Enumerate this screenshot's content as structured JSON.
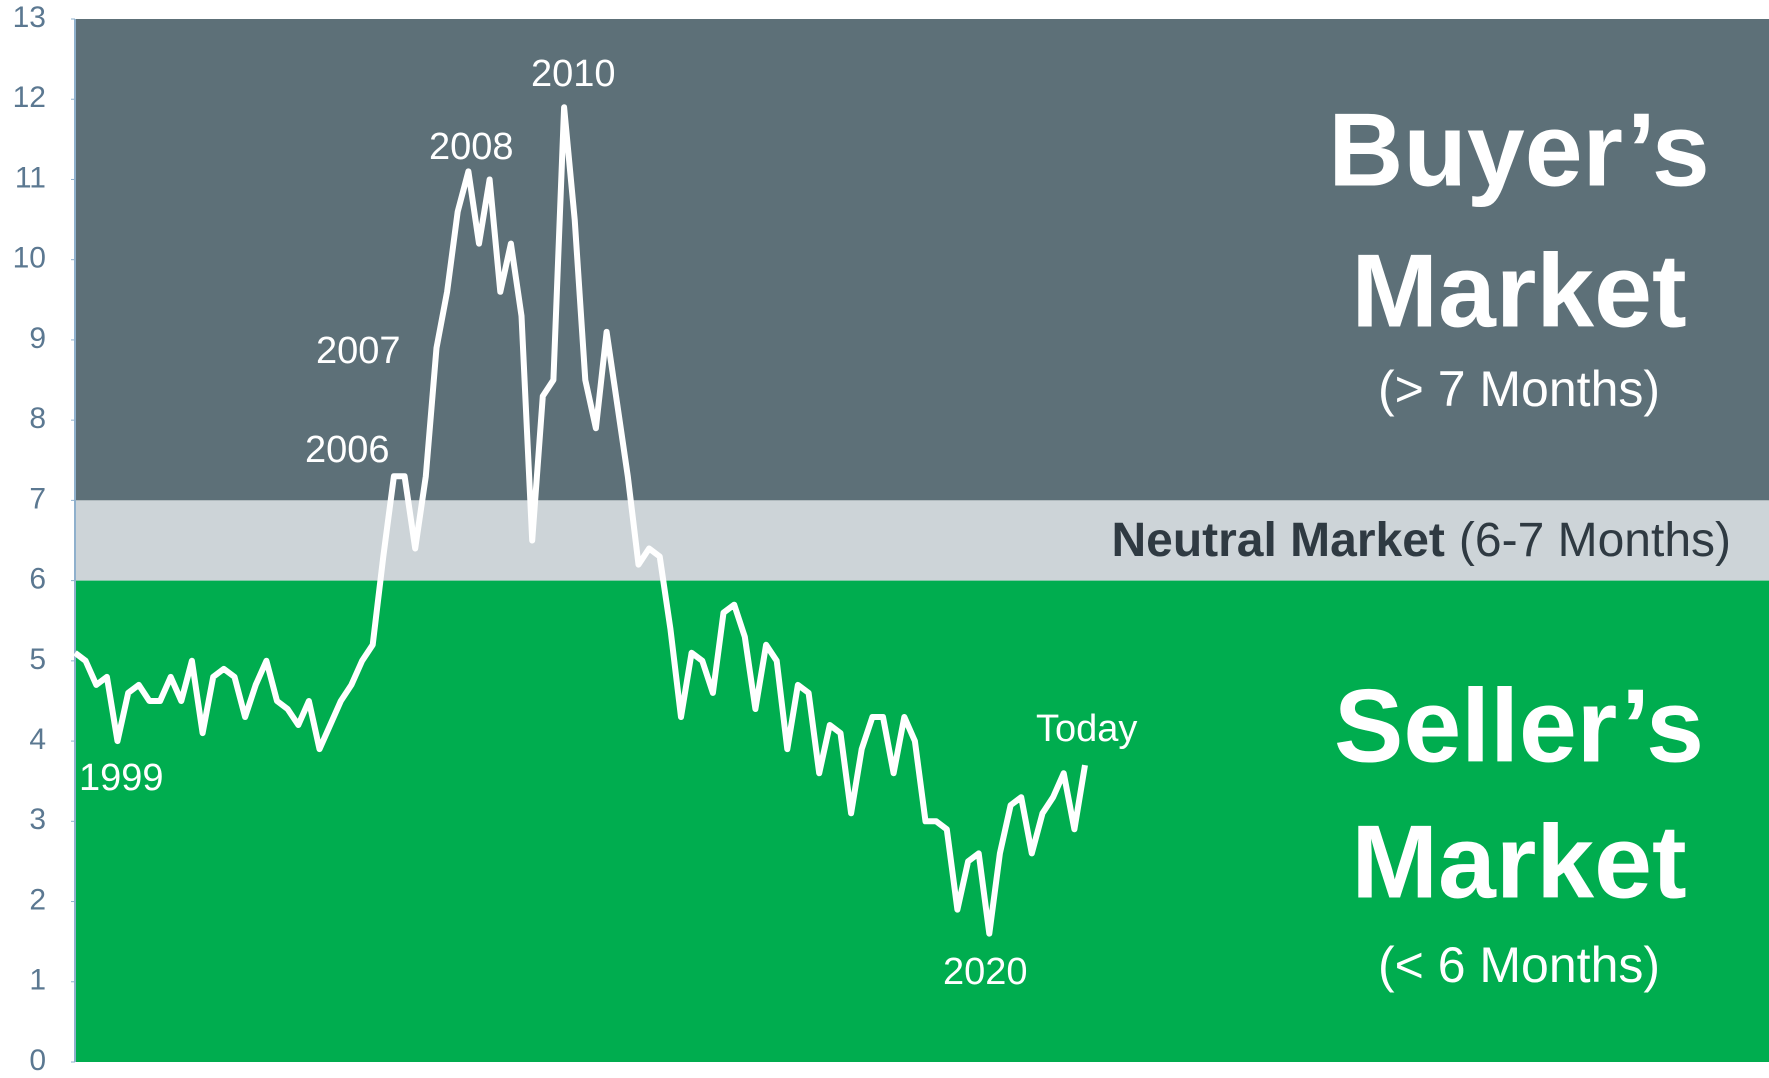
{
  "chart_data": {
    "type": "line",
    "bands": [
      {
        "from": 7,
        "to": 13,
        "color": "#5d7078",
        "title": "Buyer’s",
        "title2": "Market",
        "note": "(> 7 Months)"
      },
      {
        "from": 6,
        "to": 7,
        "color": "#cdd4d8",
        "title": "Neutral Market",
        "note": "(6-7 Months)"
      },
      {
        "from": 0,
        "to": 6,
        "color": "#00ad4f",
        "title": "Seller’s",
        "title2": "Market",
        "note": "(< 6 Months)"
      }
    ],
    "annotations": [
      "1999",
      "2006",
      "2007",
      "2008",
      "2010",
      "2020",
      "Today"
    ],
    "series": [
      {
        "color": "#ffffff",
        "values": [
          5.1,
          5.0,
          4.7,
          4.8,
          4.0,
          4.6,
          4.7,
          4.5,
          4.5,
          4.8,
          4.5,
          5.0,
          4.1,
          4.8,
          4.9,
          4.8,
          4.3,
          4.7,
          5.0,
          4.5,
          4.4,
          4.2,
          4.5,
          3.9,
          4.2,
          4.5,
          4.7,
          5.0,
          5.2,
          6.3,
          7.3,
          7.3,
          6.4,
          7.3,
          8.9,
          9.6,
          10.6,
          11.1,
          10.2,
          11.0,
          9.6,
          10.2,
          9.3,
          6.5,
          8.3,
          8.5,
          11.9,
          10.5,
          8.5,
          7.9,
          9.1,
          8.2,
          7.3,
          6.2,
          6.4,
          6.3,
          5.4,
          4.3,
          5.1,
          5.0,
          4.6,
          5.6,
          5.7,
          5.3,
          4.4,
          5.2,
          5.0,
          3.9,
          4.7,
          4.6,
          3.6,
          4.2,
          4.1,
          3.1,
          3.9,
          4.3,
          4.3,
          3.6,
          4.3,
          4.0,
          3.0,
          3.0,
          2.9,
          1.9,
          2.5,
          2.6,
          1.6,
          2.6,
          3.2,
          3.3,
          2.6,
          3.1,
          3.3,
          3.6,
          2.9,
          3.7
        ]
      }
    ],
    "ylim": [
      0,
      13
    ],
    "yticks": [
      0,
      1,
      2,
      3,
      4,
      5,
      6,
      7,
      8,
      9,
      10,
      11,
      12,
      13
    ]
  }
}
